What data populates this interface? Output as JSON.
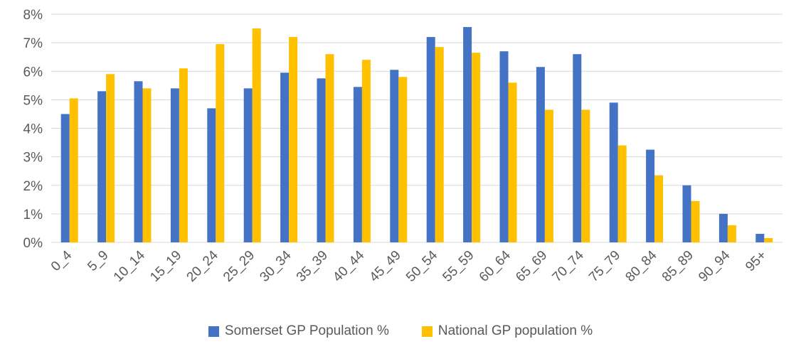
{
  "chart_data": {
    "type": "bar",
    "title": "",
    "xlabel": "",
    "ylabel": "",
    "ylim": [
      0,
      8
    ],
    "y_ticks": [
      "0%",
      "1%",
      "2%",
      "3%",
      "4%",
      "5%",
      "6%",
      "7%",
      "8%"
    ],
    "grid": true,
    "legend_position": "bottom",
    "categories": [
      "0_4",
      "5_9",
      "10_14",
      "15_19",
      "20_24",
      "25_29",
      "30_34",
      "35_39",
      "40_44",
      "45_49",
      "50_54",
      "55_59",
      "60_64",
      "65_69",
      "70_74",
      "75_79",
      "80_84",
      "85_89",
      "90_94",
      "95+"
    ],
    "series": [
      {
        "name": "Somerset GP Population %",
        "color": "#4472C4",
        "values": [
          4.5,
          5.3,
          5.65,
          5.4,
          4.7,
          5.4,
          5.95,
          5.75,
          5.45,
          6.05,
          7.2,
          7.55,
          6.7,
          6.15,
          6.6,
          4.9,
          3.25,
          2.0,
          1.0,
          0.3
        ]
      },
      {
        "name": "National GP population %",
        "color": "#FFC000",
        "values": [
          5.05,
          5.9,
          5.4,
          6.1,
          6.95,
          7.5,
          7.2,
          6.6,
          6.4,
          5.8,
          6.85,
          6.65,
          5.6,
          4.65,
          4.65,
          3.4,
          2.35,
          1.45,
          0.6,
          0.15
        ]
      }
    ]
  }
}
